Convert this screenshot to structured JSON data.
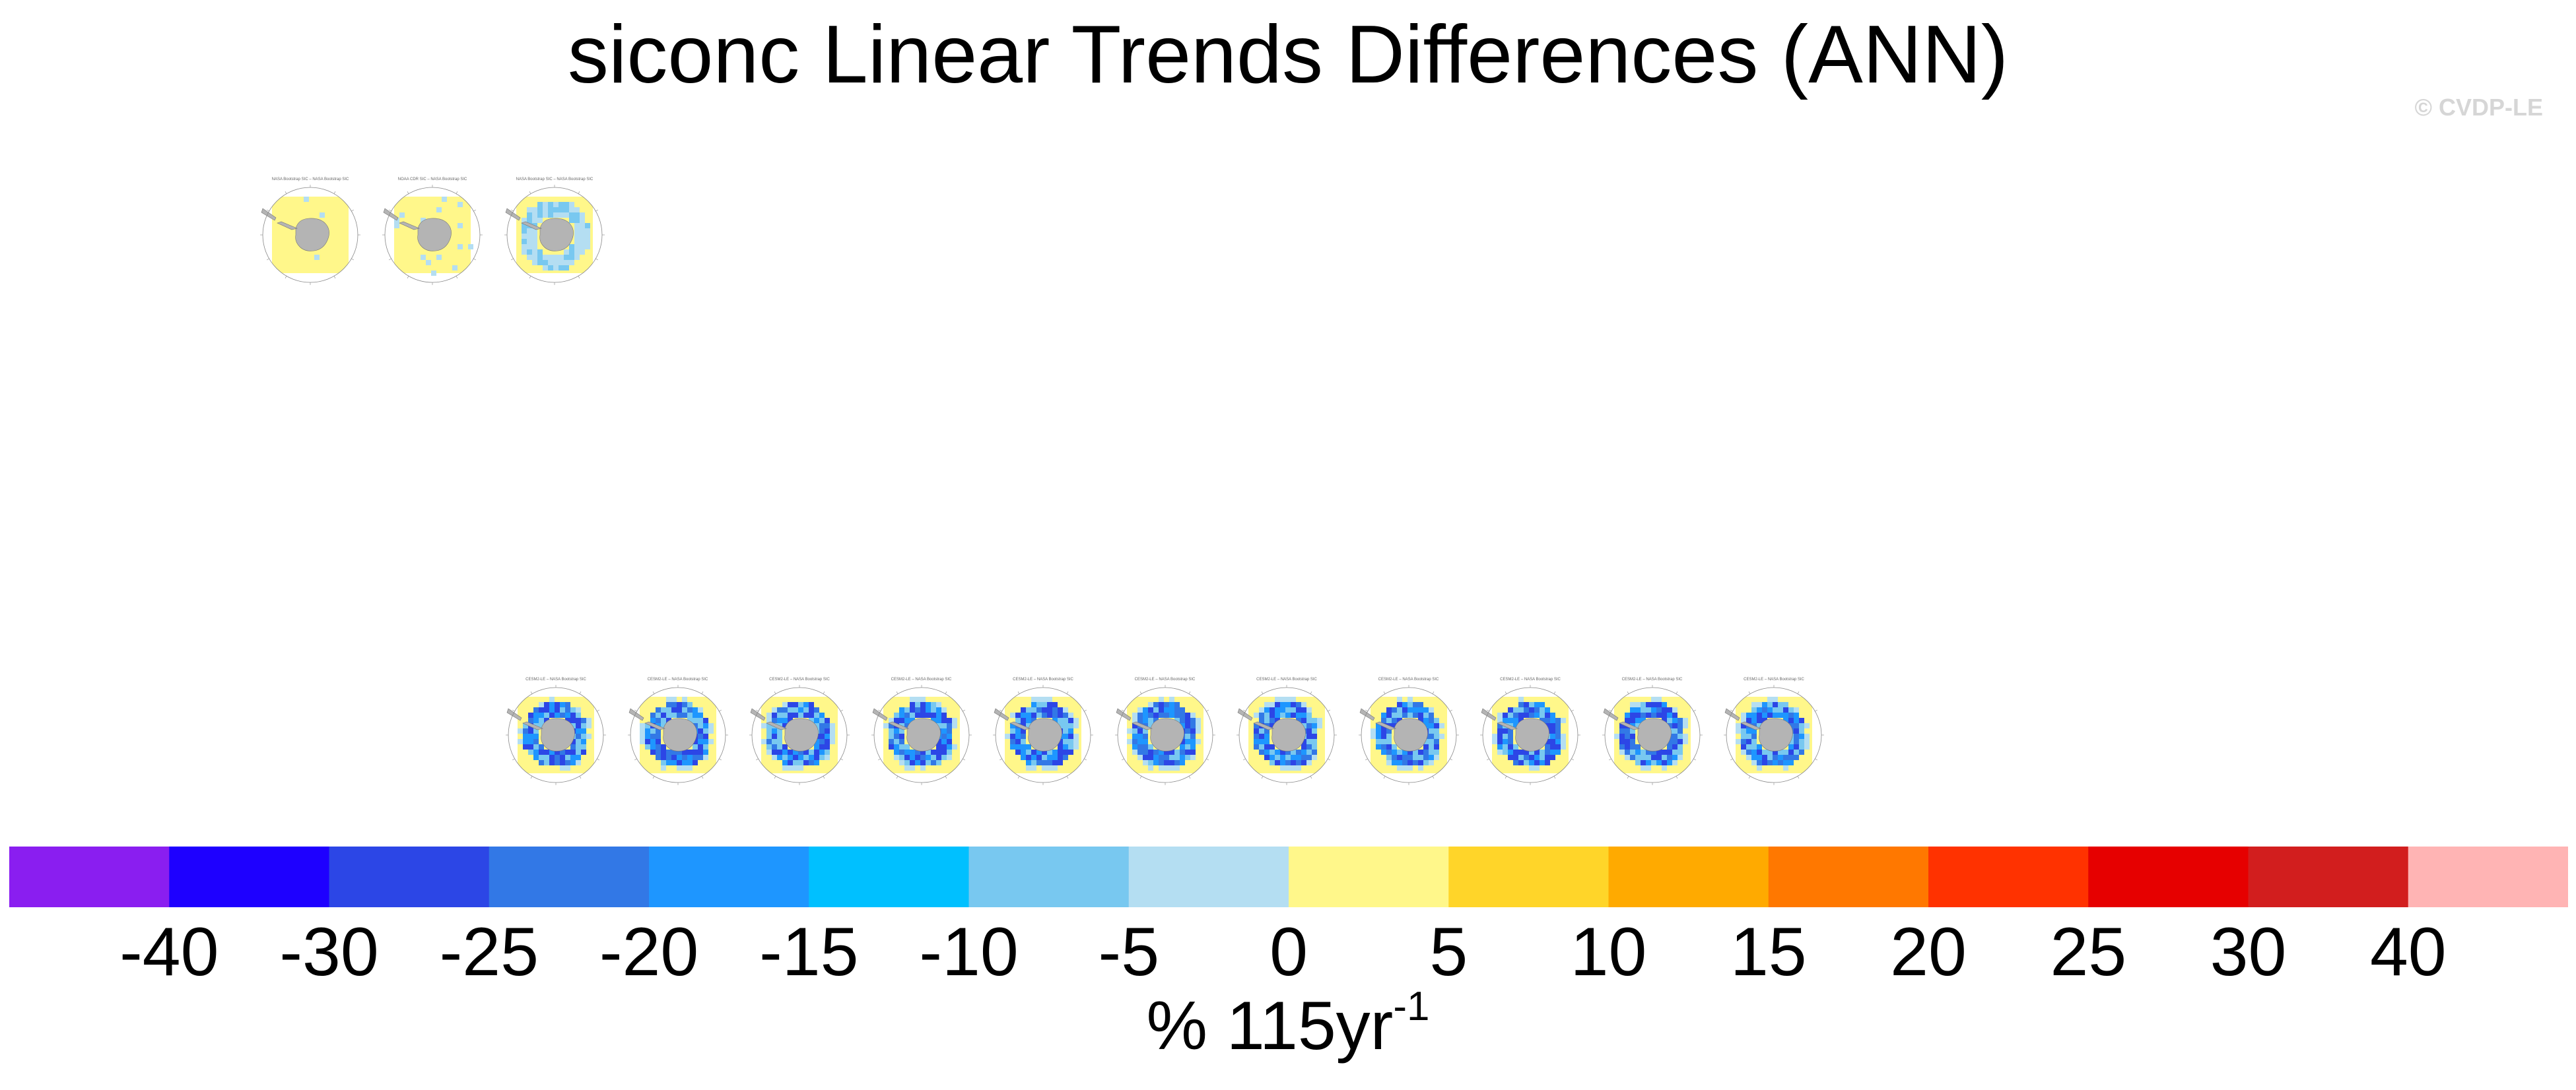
{
  "title": "siconc Linear Trends Differences (ANN)",
  "watermark": "© CVDP-LE",
  "units": {
    "main": "% 115yr",
    "exponent": "-1"
  },
  "panels_top": [
    {
      "title": "NASA Bootstrap SIC – NASA Bootstrap SIC",
      "pattern": "uniform"
    },
    {
      "title": "NOAA CDR SIC – NASA Bootstrap SIC",
      "pattern": "speckle"
    },
    {
      "title": "NASA Bootstrap SIC – NASA Bootstrap SIC",
      "pattern": "ring-light"
    }
  ],
  "panels_bottom": [
    {
      "title": "CESM2-LE – NASA Bootstrap SIC",
      "pattern": "ring"
    },
    {
      "title": "CESM2-LE – NASA Bootstrap SIC",
      "pattern": "ring"
    },
    {
      "title": "CESM2-LE – NASA Bootstrap SIC",
      "pattern": "ring"
    },
    {
      "title": "CESM2-LE – NASA Bootstrap SIC",
      "pattern": "ring"
    },
    {
      "title": "CESM2-LE – NASA Bootstrap SIC",
      "pattern": "ring"
    },
    {
      "title": "CESM2-LE – NASA Bootstrap SIC",
      "pattern": "ring"
    },
    {
      "title": "CESM2-LE – NASA Bootstrap SIC",
      "pattern": "ring"
    },
    {
      "title": "CESM2-LE – NASA Bootstrap SIC",
      "pattern": "ring"
    },
    {
      "title": "CESM2-LE – NASA Bootstrap SIC",
      "pattern": "ring"
    },
    {
      "title": "CESM2-LE – NASA Bootstrap SIC",
      "pattern": "ring"
    },
    {
      "title": "CESM2-LE – NASA Bootstrap SIC",
      "pattern": "ring"
    }
  ],
  "chart_data": {
    "type": "heatmap",
    "title": "siconc Linear Trends Differences (ANN)",
    "colorbar": {
      "label": "% 115yr-1",
      "tick_labels": [
        "-40",
        "-30",
        "-25",
        "-20",
        "-15",
        "-10",
        "-5",
        "0",
        "5",
        "10",
        "15",
        "20",
        "25",
        "30",
        "40"
      ],
      "colors": [
        "#8a1ef0",
        "#1e00ff",
        "#2c46e6",
        "#3278e6",
        "#1e96ff",
        "#00c0ff",
        "#78c8f0",
        "#b4def2",
        "#fff78a",
        "#ffd529",
        "#ffaa00",
        "#ff7800",
        "#ff3200",
        "#e60000",
        "#d21e1e",
        "#ffb4b4"
      ]
    }
  }
}
